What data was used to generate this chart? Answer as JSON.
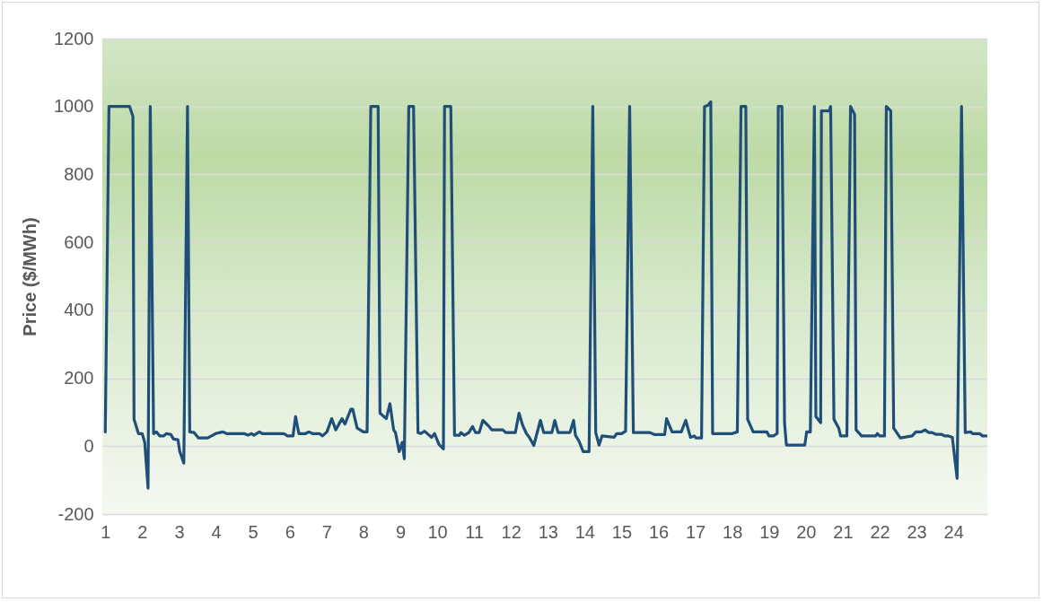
{
  "chart_data": {
    "type": "line",
    "ylabel": "Price ($/MWh)",
    "xlim": [
      0.92,
      24.92
    ],
    "xticks": [
      1,
      2,
      3,
      4,
      5,
      6,
      7,
      8,
      9,
      10,
      11,
      12,
      13,
      14,
      15,
      16,
      17,
      18,
      19,
      20,
      21,
      22,
      23,
      24
    ],
    "ylim": [
      -200,
      1200
    ],
    "yticks": [
      -200,
      0,
      200,
      400,
      600,
      800,
      1000,
      1200
    ],
    "grid": "y",
    "legend": false,
    "marker": "none",
    "line_style": "solid",
    "series": [
      {
        "color": "#1f4e79",
        "x": [
          1.0,
          1.1,
          1.66,
          1.75,
          1.78,
          1.9,
          2.0,
          2.07,
          2.16,
          2.22,
          2.31,
          2.39,
          2.48,
          2.58,
          2.66,
          2.78,
          2.85,
          2.97,
          3.02,
          3.13,
          3.23,
          3.29,
          3.41,
          3.53,
          3.78,
          3.99,
          4.19,
          4.29,
          4.77,
          4.87,
          4.97,
          5.03,
          5.18,
          5.26,
          5.84,
          5.94,
          6.09,
          6.16,
          6.25,
          6.43,
          6.52,
          6.62,
          6.81,
          6.89,
          7.01,
          7.14,
          7.25,
          7.42,
          7.5,
          7.66,
          7.71,
          7.83,
          8.0,
          8.1,
          8.2,
          8.4,
          8.45,
          8.62,
          8.72,
          8.82,
          8.87,
          8.97,
          9.05,
          9.11,
          9.23,
          9.36,
          9.48,
          9.56,
          9.66,
          9.85,
          9.93,
          10.05,
          10.17,
          10.2,
          10.37,
          10.47,
          10.6,
          10.64,
          10.74,
          10.86,
          10.96,
          11.04,
          11.14,
          11.24,
          11.39,
          11.48,
          11.78,
          11.86,
          12.12,
          12.22,
          12.32,
          12.42,
          12.5,
          12.62,
          12.8,
          12.89,
          13.11,
          13.19,
          13.28,
          13.6,
          13.7,
          13.75,
          13.85,
          13.96,
          14.12,
          14.22,
          14.3,
          14.39,
          14.47,
          14.8,
          14.87,
          15.0,
          15.11,
          15.22,
          15.32,
          15.77,
          15.9,
          16.17,
          16.22,
          16.37,
          16.62,
          16.74,
          16.87,
          16.97,
          17.02,
          17.17,
          17.25,
          17.34,
          17.42,
          17.47,
          18.0,
          18.14,
          18.24,
          18.37,
          18.42,
          18.57,
          18.94,
          19.0,
          19.12,
          19.22,
          19.25,
          19.35,
          19.42,
          19.47,
          19.97,
          20.02,
          20.12,
          20.23,
          20.27,
          20.4,
          20.42,
          20.63,
          20.67,
          20.76,
          20.89,
          20.94,
          21.11,
          21.21,
          21.32,
          21.36,
          21.51,
          21.89,
          21.94,
          22.0,
          22.13,
          22.18,
          22.3,
          22.38,
          22.56,
          22.88,
          22.98,
          23.13,
          23.23,
          23.33,
          23.42,
          23.52,
          23.67,
          23.77,
          23.87,
          23.97,
          24.1,
          24.22,
          24.32,
          24.47,
          24.52,
          24.71,
          24.79,
          24.89
        ],
        "values": [
          42,
          1000,
          1000,
          971,
          79,
          37,
          37,
          11,
          -124,
          1000,
          37,
          42,
          30,
          30,
          37,
          34,
          21,
          19,
          -16,
          -50,
          1000,
          42,
          40,
          24,
          24,
          37,
          42,
          37,
          37,
          32,
          37,
          32,
          42,
          37,
          37,
          30,
          30,
          87,
          37,
          37,
          42,
          37,
          37,
          30,
          42,
          81,
          48,
          81,
          65,
          109,
          109,
          53,
          42,
          42,
          1000,
          1000,
          97,
          81,
          125,
          48,
          40,
          -16,
          11,
          -37,
          1000,
          1000,
          40,
          37,
          44,
          26,
          37,
          5,
          -8,
          1000,
          1000,
          32,
          32,
          40,
          32,
          40,
          58,
          40,
          40,
          76,
          60,
          48,
          48,
          40,
          40,
          97,
          61,
          37,
          26,
          2,
          76,
          40,
          40,
          76,
          40,
          40,
          76,
          32,
          14,
          -16,
          -16,
          1000,
          40,
          3,
          30,
          26,
          37,
          37,
          44,
          1000,
          40,
          40,
          34,
          34,
          81,
          42,
          42,
          76,
          26,
          30,
          24,
          24,
          1000,
          1003,
          1014,
          37,
          37,
          42,
          1000,
          1000,
          79,
          42,
          42,
          30,
          30,
          37,
          1000,
          1000,
          69,
          3,
          3,
          42,
          42,
          1000,
          87,
          69,
          987,
          987,
          1000,
          79,
          53,
          30,
          30,
          1000,
          977,
          48,
          30,
          30,
          37,
          30,
          30,
          1000,
          987,
          53,
          24,
          30,
          42,
          42,
          48,
          40,
          40,
          35,
          35,
          30,
          30,
          26,
          -95,
          1000,
          40,
          42,
          37,
          37,
          30,
          30
        ]
      }
    ]
  }
}
